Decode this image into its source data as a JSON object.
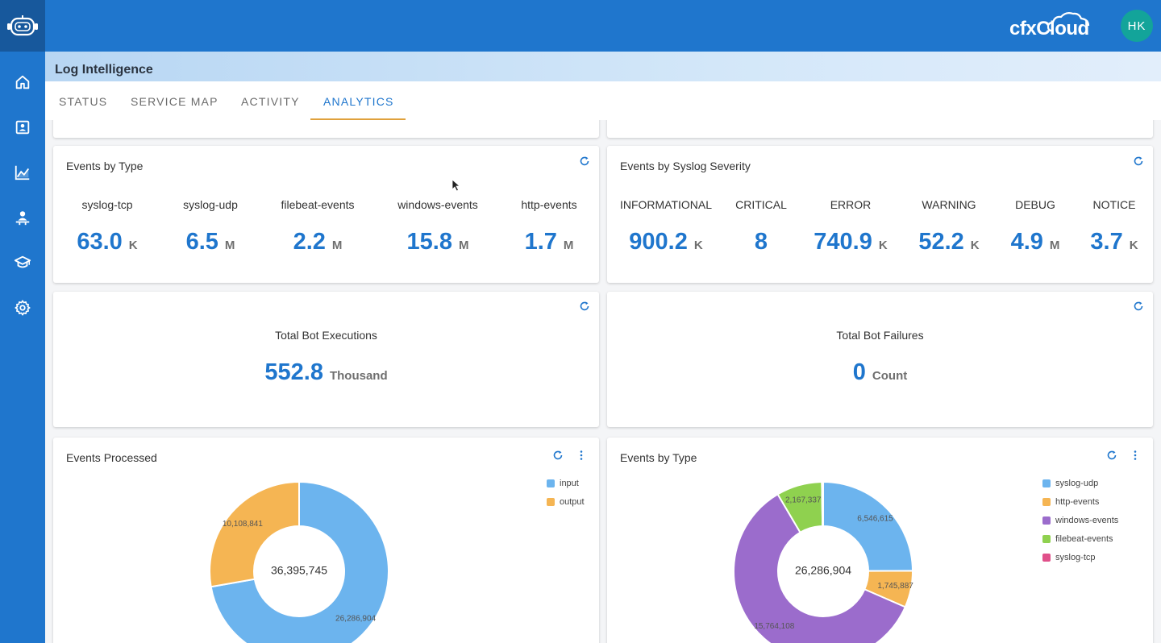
{
  "app": {
    "brand": "cfxCloud",
    "user_initials": "HK",
    "page_title": "Log Intelligence"
  },
  "colors": {
    "primary": "#1f76cd",
    "accent": "#e0a13c",
    "avatar": "#13a49a"
  },
  "sidebar": {
    "items": [
      {
        "name": "home",
        "icon": "home-icon"
      },
      {
        "name": "contacts",
        "icon": "contact-card-icon"
      },
      {
        "name": "analytics",
        "icon": "line-chart-icon"
      },
      {
        "name": "users",
        "icon": "user-desk-icon"
      },
      {
        "name": "learning",
        "icon": "graduation-cap-icon"
      },
      {
        "name": "settings",
        "icon": "gear-icon"
      }
    ]
  },
  "tabs": [
    {
      "label": "STATUS"
    },
    {
      "label": "SERVICE MAP"
    },
    {
      "label": "ACTIVITY"
    },
    {
      "label": "ANALYTICS",
      "active": true
    }
  ],
  "events_by_type": {
    "title": "Events by Type",
    "stats": [
      {
        "label": "syslog-tcp",
        "value": "63.0",
        "unit": "K"
      },
      {
        "label": "syslog-udp",
        "value": "6.5",
        "unit": "M"
      },
      {
        "label": "filebeat-events",
        "value": "2.2",
        "unit": "M"
      },
      {
        "label": "windows-events",
        "value": "15.8",
        "unit": "M"
      },
      {
        "label": "http-events",
        "value": "1.7",
        "unit": "M"
      }
    ]
  },
  "events_by_severity": {
    "title": "Events by Syslog Severity",
    "stats": [
      {
        "label": "INFORMATIONAL",
        "value": "900.2",
        "unit": "K"
      },
      {
        "label": "CRITICAL",
        "value": "8",
        "unit": ""
      },
      {
        "label": "ERROR",
        "value": "740.9",
        "unit": "K"
      },
      {
        "label": "WARNING",
        "value": "52.2",
        "unit": "K"
      },
      {
        "label": "DEBUG",
        "value": "4.9",
        "unit": "M"
      },
      {
        "label": "NOTICE",
        "value": "3.7",
        "unit": "K"
      }
    ]
  },
  "bot_executions": {
    "label": "Total Bot Executions",
    "value": "552.8",
    "unit": "Thousand"
  },
  "bot_failures": {
    "label": "Total Bot Failures",
    "value": "0",
    "unit": "Count"
  },
  "chart_data": [
    {
      "type": "pie",
      "title": "Events Processed",
      "center_label": "36,395,745",
      "legend_position": "top-right",
      "series": [
        {
          "name": "input",
          "value": 26286904,
          "label": "26,286,904",
          "color": "#6cb4ee"
        },
        {
          "name": "output",
          "value": 10108841,
          "label": "10,108,841",
          "color": "#f5b553"
        }
      ]
    },
    {
      "type": "pie",
      "title": "Events by Type",
      "center_label": "26,286,904",
      "legend_position": "top-right",
      "series": [
        {
          "name": "syslog-udp",
          "value": 6546615,
          "label": "6,546,615",
          "color": "#6cb4ee"
        },
        {
          "name": "http-events",
          "value": 1745887,
          "label": "1,745,887",
          "color": "#f5b553"
        },
        {
          "name": "windows-events",
          "value": 15764108,
          "label": "15,764,108",
          "color": "#9b6ccc"
        },
        {
          "name": "filebeat-events",
          "value": 2167337,
          "label": "2,167,337",
          "color": "#8fd14f"
        },
        {
          "name": "syslog-tcp",
          "value": 62957,
          "label": "",
          "color": "#e0508a"
        }
      ]
    }
  ]
}
